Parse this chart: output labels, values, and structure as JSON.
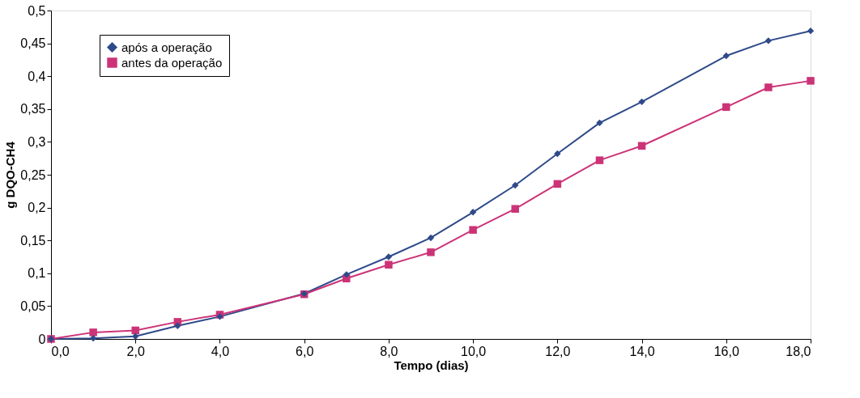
{
  "chart_data": {
    "type": "line",
    "xlabel": "Tempo (dias)",
    "ylabel": "g DQO-CH4",
    "x": [
      0,
      1,
      2,
      3,
      4,
      6,
      7,
      8,
      9,
      10,
      11,
      12,
      13,
      14,
      16,
      17,
      18
    ],
    "series": [
      {
        "name": "após a operação",
        "color": "#2e4a8a",
        "marker": "diamond",
        "values": [
          0,
          0.001,
          0.004,
          0.02,
          0.034,
          0.069,
          0.098,
          0.125,
          0.154,
          0.193,
          0.234,
          0.282,
          0.329,
          0.361,
          0.431,
          0.454,
          0.469
        ]
      },
      {
        "name": "antes da operação",
        "color": "#cc3377",
        "marker": "square",
        "values": [
          0,
          0.01,
          0.013,
          0.026,
          0.037,
          0.068,
          0.092,
          0.113,
          0.132,
          0.166,
          0.198,
          0.236,
          0.272,
          0.294,
          0.353,
          0.383,
          0.393
        ]
      }
    ],
    "xlim": [
      0,
      18
    ],
    "xticks": [
      {
        "value": 0,
        "label": "0,0"
      },
      {
        "value": 2,
        "label": "2,0"
      },
      {
        "value": 4,
        "label": "4,0"
      },
      {
        "value": 6,
        "label": "6,0"
      },
      {
        "value": 8,
        "label": "8,0"
      },
      {
        "value": 10,
        "label": "10,0"
      },
      {
        "value": 12,
        "label": "12,0"
      },
      {
        "value": 14,
        "label": "14,0"
      },
      {
        "value": 16,
        "label": "16,0"
      },
      {
        "value": 18,
        "label": "18,0"
      }
    ],
    "ylim": [
      0,
      0.5
    ],
    "yticks": [
      0,
      {
        "value": 0.05,
        "label": "0,05"
      },
      {
        "value": 0.1,
        "label": "0,1"
      },
      {
        "value": 0.15,
        "label": "0,15"
      },
      {
        "value": 0.2,
        "label": "0,2"
      },
      {
        "value": 0.25,
        "label": "0,25"
      },
      {
        "value": 0.3,
        "label": "0,3"
      },
      {
        "value": 0.35,
        "label": "0,35"
      },
      {
        "value": 0.4,
        "label": "0,4"
      },
      {
        "value": 0.45,
        "label": "0,45"
      },
      {
        "value": 0.5,
        "label": "0,5"
      }
    ],
    "grid": false,
    "legend": "top left",
    "line_style": "solid"
  }
}
